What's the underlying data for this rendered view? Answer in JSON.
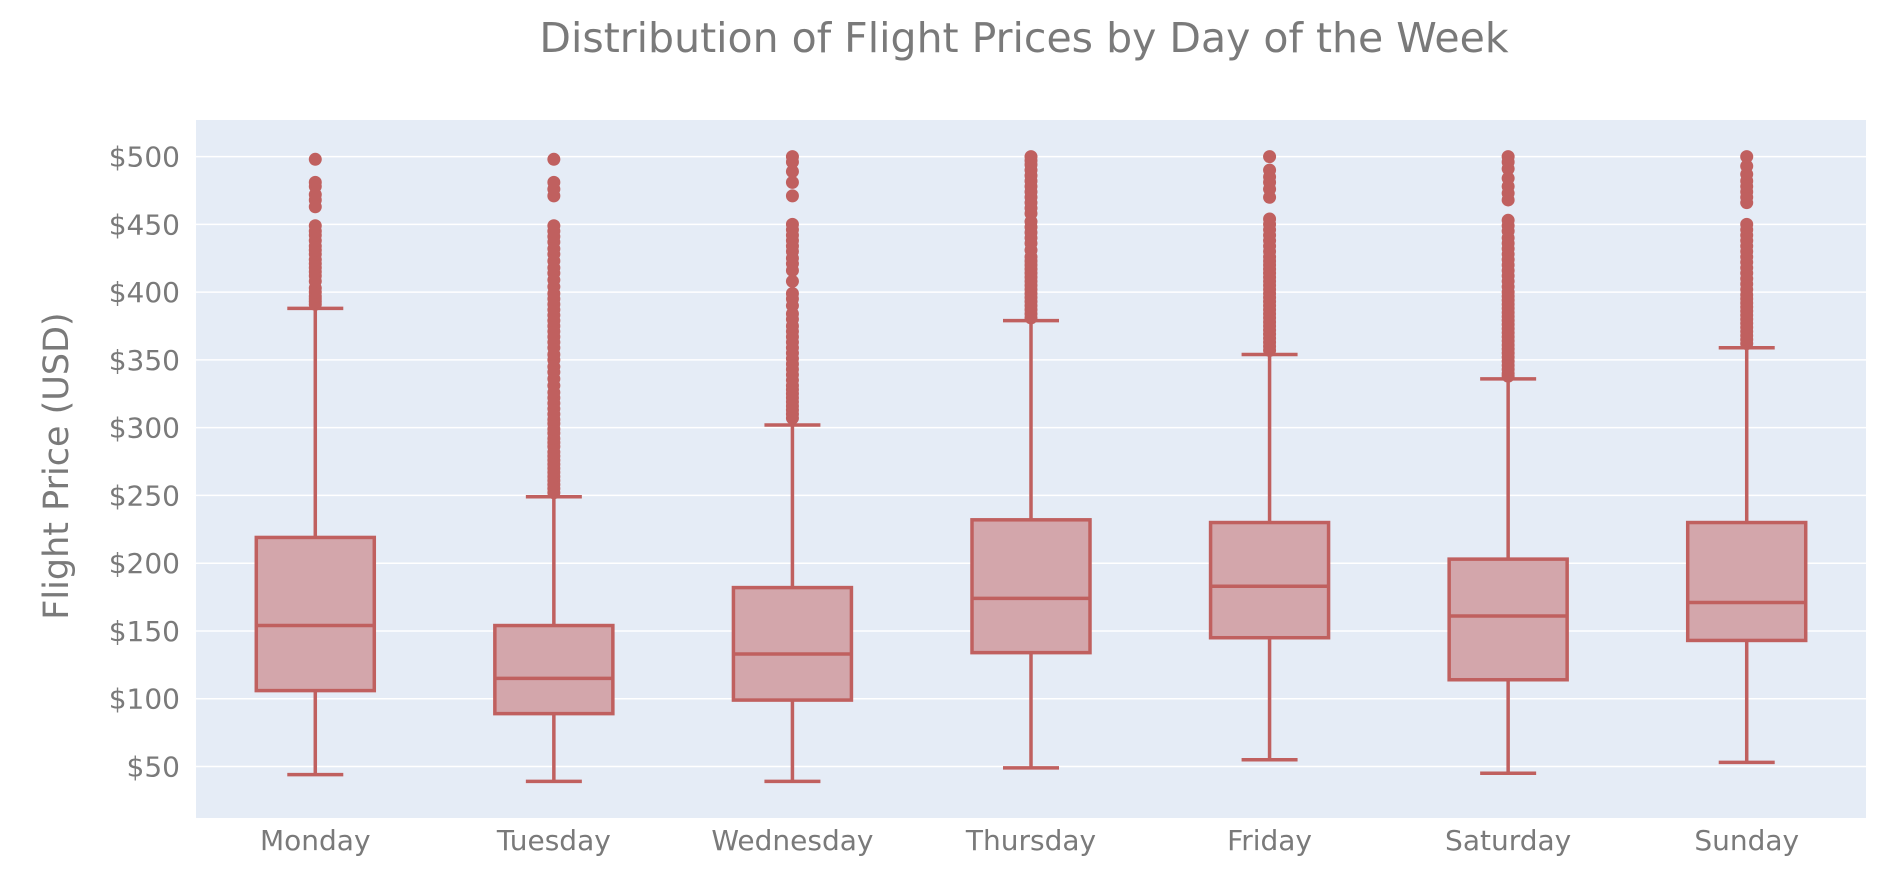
{
  "chart_data": {
    "type": "box",
    "title": "Distribution of Flight Prices by Day of the Week",
    "xlabel": "",
    "ylabel": "Flight Price (USD)",
    "ylim": [
      12,
      527
    ],
    "y_ticks": [
      50,
      100,
      150,
      200,
      250,
      300,
      350,
      400,
      450,
      500
    ],
    "y_tick_labels": [
      "$50",
      "$100",
      "$150",
      "$200",
      "$250",
      "$300",
      "$350",
      "$400",
      "$450",
      "$500"
    ],
    "grid": true,
    "legend": "none",
    "colors": {
      "plot_background": "#e5ecf6",
      "grid": "#ffffff",
      "box_line": "#c0605f",
      "box_fill": "#d3a6ab",
      "outlier": "#c0605f",
      "text": "#7a7a7a"
    },
    "categories": [
      "Monday",
      "Tuesday",
      "Wednesday",
      "Thursday",
      "Friday",
      "Saturday",
      "Sunday"
    ],
    "boxes": [
      {
        "category": "Monday",
        "lower_fence": 44,
        "q1": 106,
        "median": 154,
        "q3": 219,
        "upper_fence": 388,
        "outliers": [
          391,
          393,
          395,
          397,
          400,
          403,
          408,
          412,
          415,
          418,
          421,
          424,
          428,
          431,
          434,
          438,
          442,
          445,
          449,
          463,
          468,
          472,
          478,
          481,
          498
        ]
      },
      {
        "category": "Tuesday",
        "lower_fence": 39,
        "q1": 89,
        "median": 115,
        "q3": 154,
        "upper_fence": 249,
        "outliers": [
          252,
          255,
          258,
          261,
          264,
          267,
          270,
          273,
          276,
          279,
          282,
          286,
          289,
          292,
          296,
          299,
          303,
          306,
          310,
          314,
          318,
          322,
          326,
          331,
          336,
          341,
          345,
          350,
          354,
          359,
          363,
          367,
          371,
          375,
          379,
          383,
          387,
          391,
          395,
          399,
          404,
          409,
          414,
          418,
          423,
          428,
          432,
          437,
          441,
          445,
          449,
          471,
          476,
          481,
          498
        ]
      },
      {
        "category": "Wednesday",
        "lower_fence": 39,
        "q1": 99,
        "median": 133,
        "q3": 182,
        "upper_fence": 302,
        "outliers": [
          307,
          310,
          313,
          316,
          319,
          322,
          325,
          328,
          331,
          335,
          339,
          343,
          347,
          351,
          355,
          359,
          363,
          367,
          371,
          375,
          380,
          384,
          390,
          395,
          399,
          408,
          416,
          421,
          425,
          430,
          434,
          438,
          442,
          446,
          450,
          471,
          481,
          489,
          496,
          500
        ]
      },
      {
        "category": "Thursday",
        "lower_fence": 49,
        "q1": 134,
        "median": 174,
        "q3": 232,
        "upper_fence": 379,
        "outliers": [
          381,
          384,
          387,
          390,
          393,
          396,
          399,
          402,
          405,
          408,
          411,
          414,
          417,
          420,
          423,
          426,
          431,
          436,
          440,
          444,
          448,
          452,
          458,
          462,
          466,
          470,
          474,
          478,
          482,
          486,
          490,
          494,
          497,
          500
        ]
      },
      {
        "category": "Friday",
        "lower_fence": 55,
        "q1": 145,
        "median": 183,
        "q3": 230,
        "upper_fence": 354,
        "outliers": [
          357,
          360,
          363,
          366,
          369,
          372,
          375,
          378,
          381,
          384,
          387,
          390,
          393,
          396,
          399,
          402,
          405,
          408,
          411,
          414,
          417,
          420,
          423,
          426,
          430,
          434,
          438,
          442,
          446,
          450,
          454,
          470,
          476,
          481,
          485,
          490,
          500
        ]
      },
      {
        "category": "Saturday",
        "lower_fence": 45,
        "q1": 114,
        "median": 161,
        "q3": 203,
        "upper_fence": 336,
        "outliers": [
          338,
          340,
          343,
          346,
          349,
          352,
          355,
          358,
          361,
          364,
          367,
          370,
          373,
          376,
          379,
          382,
          385,
          388,
          391,
          394,
          397,
          400,
          404,
          408,
          412,
          416,
          420,
          424,
          428,
          432,
          436,
          440,
          445,
          449,
          453,
          468,
          473,
          478,
          484,
          491,
          496,
          500
        ]
      },
      {
        "category": "Sunday",
        "lower_fence": 53,
        "q1": 143,
        "median": 171,
        "q3": 230,
        "upper_fence": 359,
        "outliers": [
          362,
          365,
          368,
          371,
          374,
          377,
          380,
          383,
          386,
          389,
          392,
          395,
          398,
          402,
          406,
          410,
          414,
          418,
          422,
          426,
          430,
          434,
          438,
          442,
          446,
          450,
          466,
          470,
          474,
          478,
          482,
          487,
          493,
          500
        ]
      }
    ]
  }
}
